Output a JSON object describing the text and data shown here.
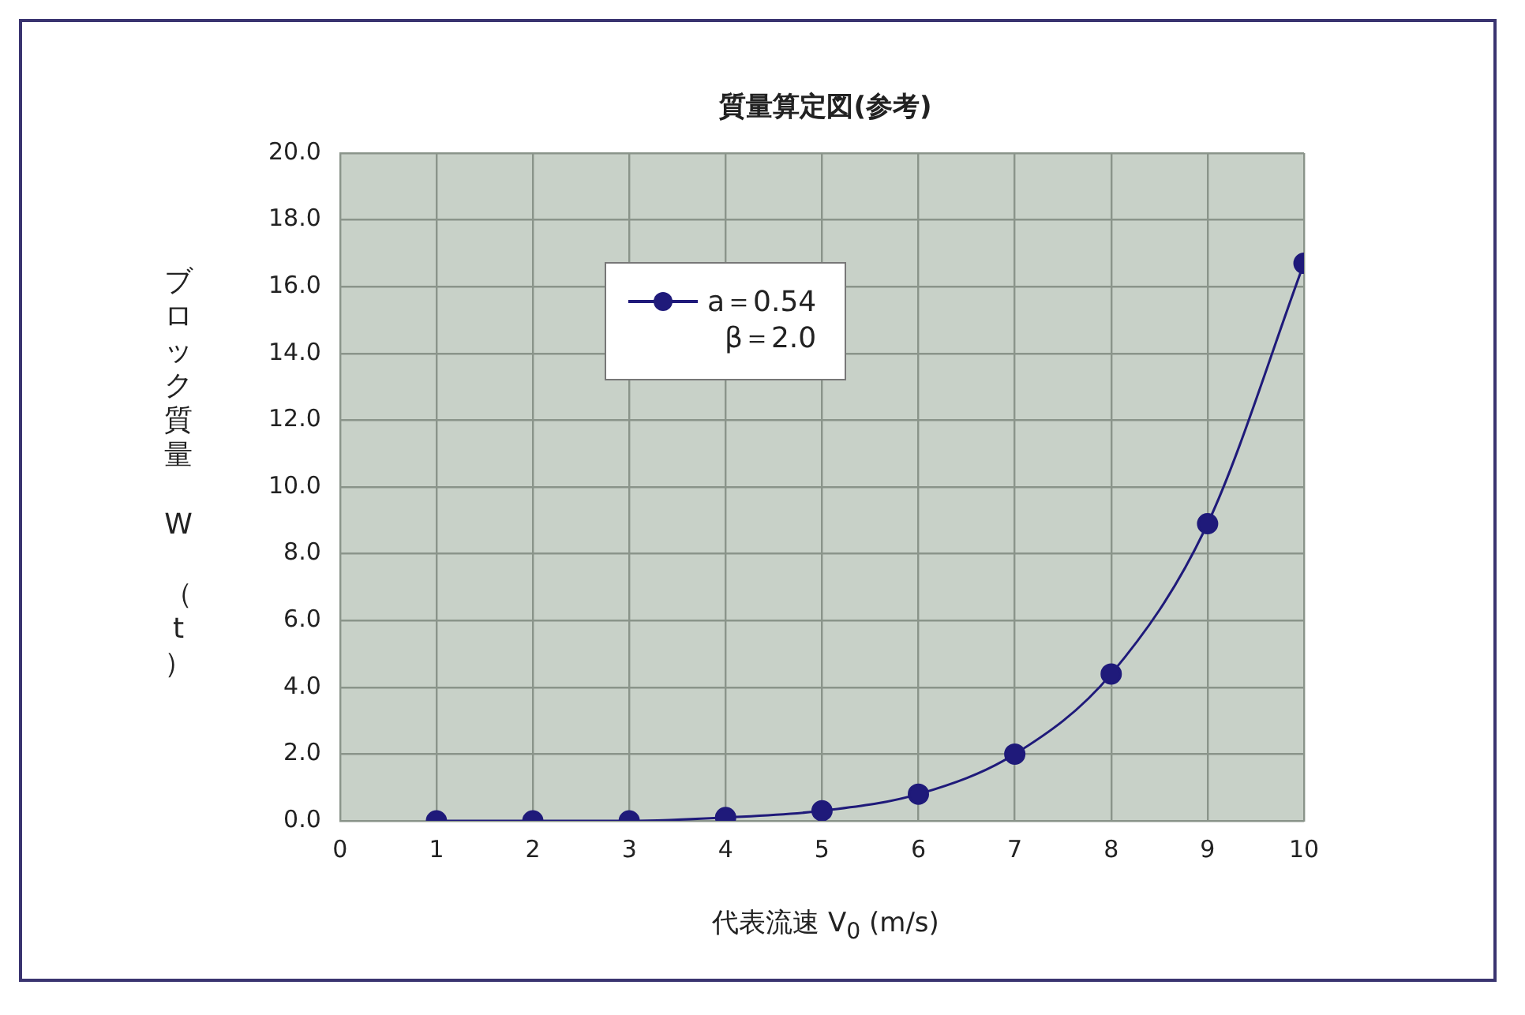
{
  "chart_data": {
    "type": "line",
    "title": "質量算定図(参考)",
    "xlabel": "代表流速 V$_{0}$ (m/s)",
    "ylabel": "ブロック質量　W　（t）",
    "x": [
      1,
      2,
      3,
      4,
      5,
      6,
      7,
      8,
      9,
      10
    ],
    "series": [
      {
        "name": "a＝0.54\nβ＝2.0",
        "color": "#1f1a7a",
        "values": [
          0.0,
          0.0,
          0.0,
          0.1,
          0.3,
          0.8,
          2.0,
          4.4,
          8.9,
          16.7
        ]
      }
    ],
    "xlim": [
      0,
      10
    ],
    "xticks": [
      0,
      1,
      2,
      3,
      4,
      5,
      6,
      7,
      8,
      9,
      10
    ],
    "ylim": [
      0,
      20
    ],
    "yticks": [
      {
        "value": 0,
        "label": "0.0"
      },
      {
        "value": 2,
        "label": "2.0"
      },
      {
        "value": 4,
        "label": "4.0"
      },
      {
        "value": 6,
        "label": "6.0"
      },
      {
        "value": 8,
        "label": "8.0"
      },
      {
        "value": 10,
        "label": "10.0"
      },
      {
        "value": 12,
        "label": "12.0"
      },
      {
        "value": 14,
        "label": "14.0"
      },
      {
        "value": 16,
        "label": "16.0"
      },
      {
        "value": 18,
        "label": "18.0"
      },
      {
        "value": 20,
        "label": "20.0"
      }
    ],
    "grid": true,
    "legend": "top left",
    "marker": "circle",
    "line_style": "solid"
  }
}
